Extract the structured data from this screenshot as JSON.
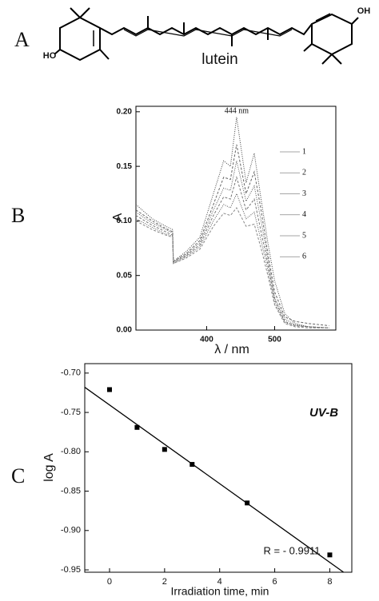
{
  "panels": [
    "A",
    "B",
    "C"
  ],
  "structure": {
    "name": "lutein",
    "labels": [
      "HO",
      "OH"
    ]
  },
  "chart_data": [
    {
      "type": "line",
      "xlabel": "λ / nm",
      "ylabel": "A",
      "annotation": "444 nm",
      "annotation_x": 444,
      "xlim": [
        296,
        590
      ],
      "ylim": [
        0,
        0.205
      ],
      "xticks": [
        400,
        500
      ],
      "yticks": [
        {
          "value": 0,
          "label": "0.00"
        },
        {
          "value": 0.05,
          "label": "0.05"
        },
        {
          "value": 0.1,
          "label": "0.10"
        },
        {
          "value": 0.15,
          "label": "0.15"
        },
        {
          "value": 0.2,
          "label": "0.20"
        }
      ],
      "x": [
        296,
        320,
        340,
        350,
        351,
        370,
        390,
        410,
        425,
        435,
        444,
        458,
        470,
        480,
        490,
        500,
        515,
        530,
        550,
        580
      ],
      "series": [
        {
          "name": "1",
          "color": "#444",
          "values": [
            0.115,
            0.102,
            0.095,
            0.092,
            0.063,
            0.072,
            0.085,
            0.125,
            0.155,
            0.15,
            0.195,
            0.135,
            0.162,
            0.12,
            0.08,
            0.045,
            0.015,
            0.006,
            0.003,
            0.002
          ]
        },
        {
          "name": "2",
          "color": "#666",
          "values": [
            0.11,
            0.1,
            0.093,
            0.09,
            0.063,
            0.07,
            0.082,
            0.115,
            0.14,
            0.138,
            0.17,
            0.125,
            0.145,
            0.11,
            0.07,
            0.035,
            0.012,
            0.008,
            0.006,
            0.004
          ]
        },
        {
          "name": "3",
          "color": "#555",
          "values": [
            0.108,
            0.098,
            0.092,
            0.089,
            0.062,
            0.069,
            0.08,
            0.11,
            0.13,
            0.128,
            0.155,
            0.118,
            0.132,
            0.1,
            0.065,
            0.03,
            0.01,
            0.005,
            0.003,
            0.002
          ]
        },
        {
          "name": "4",
          "color": "#777",
          "values": [
            0.105,
            0.096,
            0.09,
            0.087,
            0.062,
            0.068,
            0.078,
            0.105,
            0.122,
            0.12,
            0.14,
            0.11,
            0.12,
            0.09,
            0.06,
            0.028,
            0.008,
            0.004,
            0.003,
            0.002
          ]
        },
        {
          "name": "5",
          "color": "#555",
          "values": [
            0.102,
            0.094,
            0.088,
            0.086,
            0.061,
            0.067,
            0.076,
            0.1,
            0.115,
            0.112,
            0.125,
            0.102,
            0.108,
            0.082,
            0.055,
            0.025,
            0.007,
            0.004,
            0.003,
            0.002
          ]
        },
        {
          "name": "6",
          "color": "#888",
          "values": [
            0.1,
            0.092,
            0.087,
            0.085,
            0.061,
            0.066,
            0.074,
            0.095,
            0.107,
            0.105,
            0.112,
            0.095,
            0.097,
            0.075,
            0.05,
            0.023,
            0.006,
            0.003,
            0.002,
            0.002
          ]
        }
      ]
    },
    {
      "type": "scatter",
      "xlabel": "Irradiation time, min",
      "ylabel": "log A",
      "title": "UV-B",
      "annotation": "R = - 0.9911",
      "xlim": [
        -0.9,
        8.8
      ],
      "ylim": [
        -0.953,
        -0.688
      ],
      "xticks": [
        0,
        2,
        4,
        6,
        8
      ],
      "yticks": [
        {
          "value": -0.7,
          "label": "-0.70"
        },
        {
          "value": -0.75,
          "label": "-0.75"
        },
        {
          "value": -0.8,
          "label": "-0.80"
        },
        {
          "value": -0.85,
          "label": "-0.85"
        },
        {
          "value": -0.9,
          "label": "-0.90"
        },
        {
          "value": -0.95,
          "label": "-0.95"
        }
      ],
      "x": [
        0,
        1,
        2,
        3,
        5,
        8
      ],
      "values": [
        -0.721,
        -0.769,
        -0.797,
        -0.816,
        -0.865,
        -0.931
      ],
      "color": "#000",
      "fit_line": {
        "x": [
          -0.9,
          8.5
        ],
        "y": [
          -0.718,
          -0.953
        ]
      }
    }
  ]
}
